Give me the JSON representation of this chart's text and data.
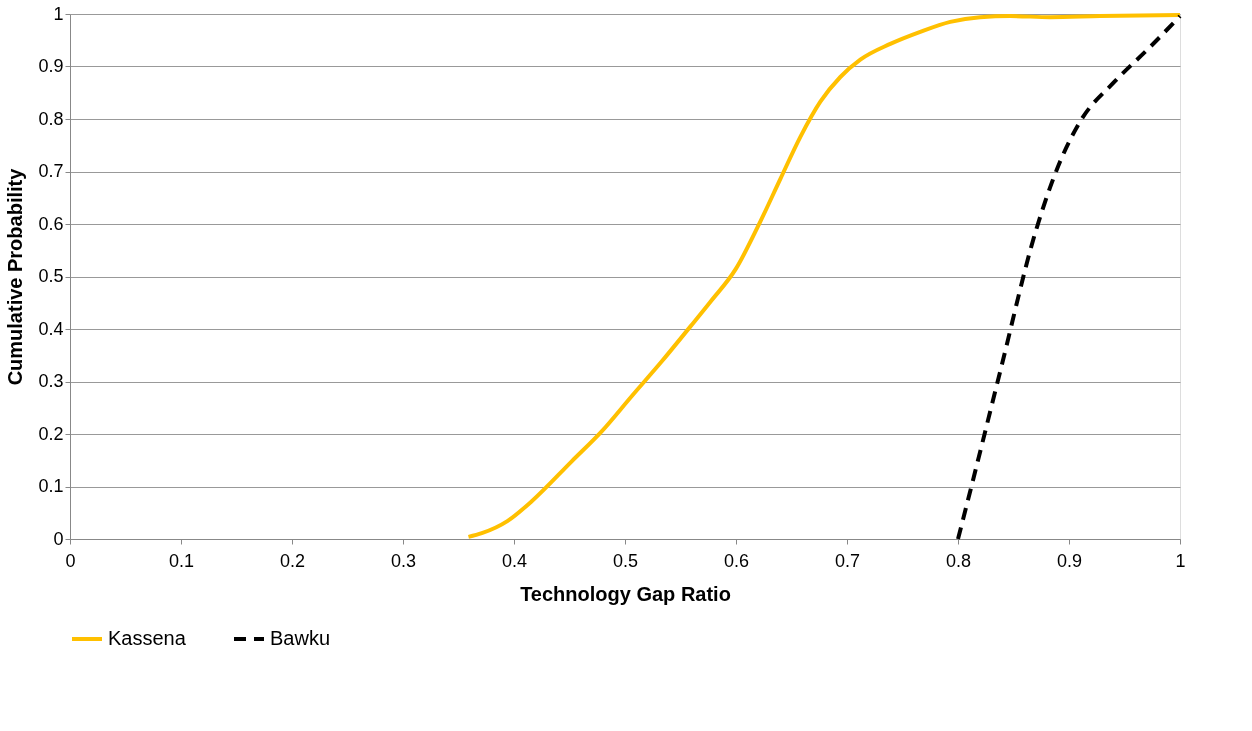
{
  "chart_data": {
    "type": "line",
    "xlabel": "Technology Gap Ratio",
    "ylabel": "Cumulative Probability",
    "xlim": [
      0,
      1
    ],
    "xticks": [
      0,
      0.1,
      0.2,
      0.3,
      0.4,
      0.5,
      0.6,
      0.7,
      0.8,
      0.9,
      1
    ],
    "ylim": [
      0,
      1
    ],
    "yticks": [
      0,
      0.1,
      0.2,
      0.3,
      0.4,
      0.5,
      0.6,
      0.7,
      0.8,
      0.9,
      1
    ],
    "grid": "y",
    "legend": "bottom",
    "marker": "none",
    "series": [
      {
        "name": "Kassena",
        "color": "#ffc000",
        "line_style": "solid",
        "x": [
          0.359,
          0.371,
          0.394,
          0.416,
          0.452,
          0.479,
          0.506,
          0.533,
          0.559,
          0.577,
          0.6,
          0.622,
          0.64,
          0.658,
          0.676,
          0.694,
          0.712,
          0.739,
          0.766,
          0.793,
          0.82,
          0.847,
          0.883,
          0.928,
          1.0
        ],
        "values": [
          0.004,
          0.011,
          0.034,
          0.072,
          0.148,
          0.205,
          0.272,
          0.338,
          0.405,
          0.452,
          0.515,
          0.605,
          0.686,
          0.766,
          0.833,
          0.88,
          0.913,
          0.943,
          0.966,
          0.985,
          0.994,
          0.996,
          0.994,
          0.996,
          0.998
        ]
      },
      {
        "name": "Bawku",
        "color": "#000000",
        "line_style": "dashed",
        "x": [
          0.8,
          0.811,
          0.838,
          0.87,
          0.892,
          0.91,
          0.941,
          0.973,
          1.0
        ],
        "values": [
          0.0,
          0.091,
          0.319,
          0.586,
          0.719,
          0.795,
          0.871,
          0.937,
          0.996
        ]
      }
    ]
  }
}
